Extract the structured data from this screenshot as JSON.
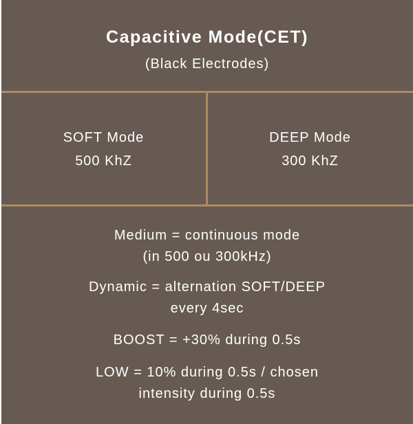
{
  "header": {
    "title": "Capacitive Mode(CET)",
    "subtitle": "(Black Electrodes)"
  },
  "modes": [
    {
      "name": "SOFT Mode",
      "frequency": "500 KhZ"
    },
    {
      "name": "DEEP Mode",
      "frequency": "300 KhZ"
    }
  ],
  "descriptions": [
    {
      "line1": "Medium = continuous mode",
      "line2": "(in 500 ou 300kHz)"
    },
    {
      "line1": "Dynamic = alternation SOFT/DEEP",
      "line2": "every 4sec"
    },
    {
      "line1": "BOOST = +30% during 0.5s"
    },
    {
      "line1": "LOW = 10% during 0.5s / chosen",
      "line2": "intensity during 0.5s"
    }
  ],
  "colors": {
    "background": "#665a53",
    "divider": "#b08a60",
    "text": "#ffffff"
  }
}
